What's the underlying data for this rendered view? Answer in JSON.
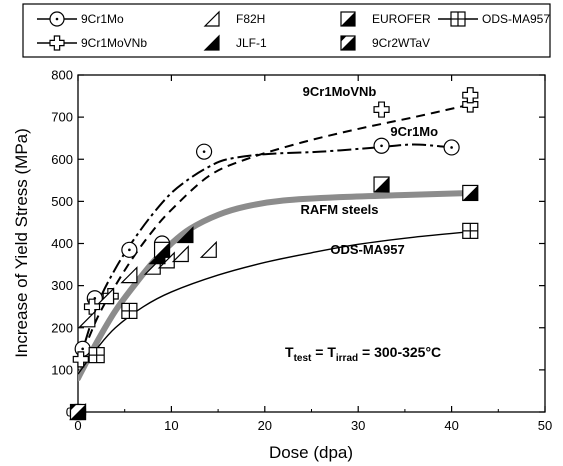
{
  "chart_data": {
    "type": "scatter",
    "xlabel": "Dose (dpa)",
    "ylabel": "Increase of Yield Stress (MPa)",
    "xlim": [
      0,
      50
    ],
    "ylim": [
      0,
      800
    ],
    "x_ticks": [
      "0",
      "10",
      "20",
      "30",
      "40",
      "50"
    ],
    "y_ticks": [
      "0",
      "100",
      "200",
      "300",
      "400",
      "500",
      "600",
      "700",
      "800"
    ],
    "grid": false,
    "legend_position": "top",
    "series": [
      {
        "name": "9Cr1Mo",
        "marker": "circle-dot",
        "points": [
          [
            0,
            0
          ],
          [
            0.5,
            150
          ],
          [
            1.8,
            270
          ],
          [
            5.5,
            385
          ],
          [
            9,
            400
          ],
          [
            13.5,
            618
          ],
          [
            32.5,
            632
          ],
          [
            40,
            628
          ]
        ]
      },
      {
        "name": "9Cr1MoVNb",
        "marker": "plus",
        "points": [
          [
            0,
            0
          ],
          [
            0.3,
            125
          ],
          [
            1.5,
            250
          ],
          [
            3.5,
            275
          ],
          [
            32.5,
            718
          ],
          [
            42,
            730
          ],
          [
            42,
            752
          ]
        ]
      },
      {
        "name": "F82H",
        "marker": "triangle-open",
        "points": [
          [
            0,
            0
          ],
          [
            1,
            220
          ],
          [
            3,
            275
          ],
          [
            5.5,
            325
          ],
          [
            8,
            345
          ],
          [
            9.5,
            360
          ],
          [
            11,
            375
          ],
          [
            14,
            385
          ]
        ]
      },
      {
        "name": "JLF-1",
        "marker": "triangle-filled",
        "points": [
          [
            8.5,
            370
          ],
          [
            11.5,
            420
          ]
        ]
      },
      {
        "name": "EUROFER",
        "marker": "half-square",
        "points": [
          [
            9,
            385
          ],
          [
            32.5,
            540
          ],
          [
            42,
            520
          ]
        ]
      },
      {
        "name": "9Cr2WTaV",
        "marker": "half-square-2",
        "points": [
          [
            0,
            0
          ]
        ]
      },
      {
        "name": "ODS-MA957",
        "marker": "grid-square",
        "points": [
          [
            2,
            135
          ],
          [
            5.5,
            240
          ],
          [
            42,
            430
          ]
        ]
      }
    ],
    "curves": [
      {
        "series": "9Cr1MoVNb",
        "style": "dashed",
        "points": [
          [
            0,
            110
          ],
          [
            2,
            220
          ],
          [
            4,
            300
          ],
          [
            6,
            370
          ],
          [
            8,
            430
          ],
          [
            10,
            480
          ],
          [
            14,
            560
          ],
          [
            18,
            600
          ],
          [
            24,
            640
          ],
          [
            30,
            672
          ],
          [
            36,
            700
          ],
          [
            42,
            730
          ]
        ]
      },
      {
        "series": "9Cr1Mo",
        "style": "dash-dot",
        "points": [
          [
            0,
            110
          ],
          [
            2,
            250
          ],
          [
            4,
            340
          ],
          [
            6,
            410
          ],
          [
            8,
            470
          ],
          [
            10,
            520
          ],
          [
            12,
            555
          ],
          [
            14,
            582
          ],
          [
            16,
            600
          ],
          [
            20,
            612
          ],
          [
            26,
            618
          ],
          [
            32,
            628
          ],
          [
            36,
            635
          ],
          [
            40,
            628
          ]
        ]
      },
      {
        "series": "RAFM steels",
        "style": "thick-gray",
        "points": [
          [
            0,
            80
          ],
          [
            2,
            165
          ],
          [
            4,
            240
          ],
          [
            6,
            300
          ],
          [
            8,
            355
          ],
          [
            10,
            400
          ],
          [
            12,
            435
          ],
          [
            15,
            468
          ],
          [
            18,
            488
          ],
          [
            22,
            502
          ],
          [
            28,
            510
          ],
          [
            35,
            515
          ],
          [
            42,
            520
          ]
        ]
      },
      {
        "series": "ODS-MA957",
        "style": "solid-thin",
        "points": [
          [
            0,
            90
          ],
          [
            2,
            150
          ],
          [
            4,
            200
          ],
          [
            7,
            250
          ],
          [
            10,
            285
          ],
          [
            15,
            325
          ],
          [
            20,
            355
          ],
          [
            25,
            378
          ],
          [
            30,
            398
          ],
          [
            36,
            415
          ],
          [
            42,
            428
          ]
        ]
      }
    ],
    "annotations": [
      {
        "text": "9Cr1MoVNb",
        "x": 28,
        "y": 750
      },
      {
        "text": "9Cr1Mo",
        "x": 36,
        "y": 655
      },
      {
        "text": "RAFM steels",
        "x": 28,
        "y": 470
      },
      {
        "text": "ODS-MA957",
        "x": 31,
        "y": 375
      }
    ],
    "condition": {
      "t": "T",
      "test": "test",
      "eq": " = ",
      "irrad": "irrad",
      "value": " = 300-325°C"
    }
  }
}
